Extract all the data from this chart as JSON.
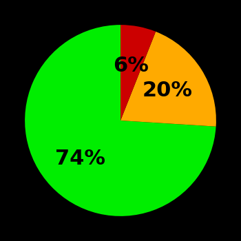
{
  "slices": [
    74,
    20,
    6
  ],
  "colors": [
    "#00ee00",
    "#ffaa00",
    "#cc0000"
  ],
  "labels": [
    "74%",
    "20%",
    "6%"
  ],
  "background_color": "#000000",
  "startangle": 90,
  "label_fontsize": 22,
  "label_color": "#000000",
  "label_radii": [
    0.55,
    0.55,
    0.55
  ]
}
